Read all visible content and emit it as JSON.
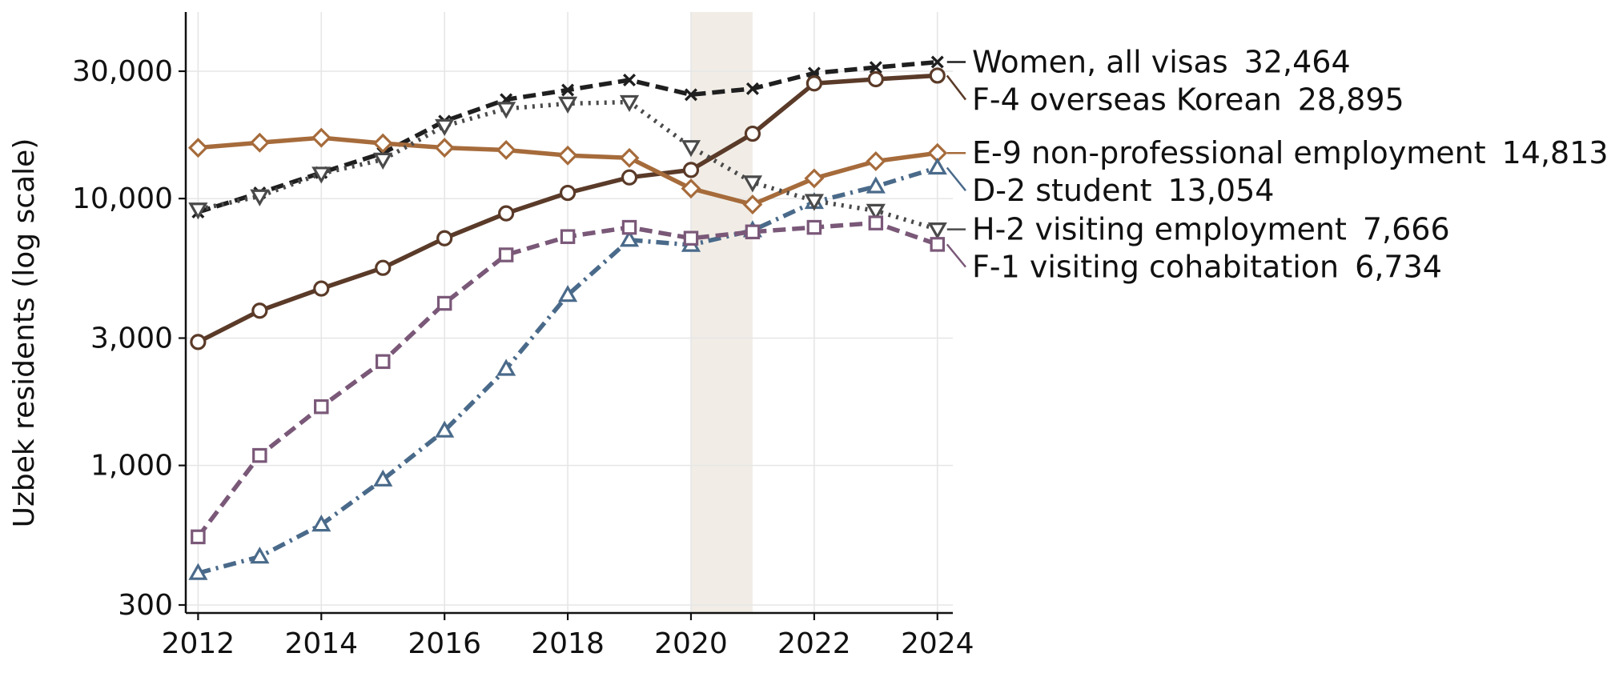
{
  "chart_data": {
    "type": "line",
    "title": "",
    "xlabel": "",
    "ylabel": "Uzbek residents (log scale)",
    "y_scale": "log",
    "ylim": [
      280,
      50000
    ],
    "xlim": [
      2011.8,
      2024.25
    ],
    "grid": true,
    "x": [
      2012,
      2013,
      2014,
      2015,
      2016,
      2017,
      2018,
      2019,
      2020,
      2021,
      2022,
      2023,
      2024
    ],
    "x_ticks": [
      2012,
      2014,
      2016,
      2018,
      2020,
      2022,
      2024
    ],
    "x_tick_labels": [
      "2012",
      "2014",
      "2016",
      "2018",
      "2020",
      "2022",
      "2024"
    ],
    "y_ticks": [
      300,
      1000,
      3000,
      10000,
      30000
    ],
    "y_tick_labels": [
      "300",
      "1,000",
      "3,000",
      "10,000",
      "30,000"
    ],
    "shaded_span": [
      2020,
      2021
    ],
    "shaded_color": "#f1ede6",
    "end_labels": "right",
    "series": [
      {
        "name": "Women, all visas",
        "end_value_label": "32,464",
        "color": "#1f1f1f",
        "line_style": "dashed",
        "marker": "x",
        "values": [
          8900,
          10500,
          12500,
          14800,
          19500,
          23500,
          25500,
          27800,
          24500,
          25800,
          29500,
          31000,
          32464
        ]
      },
      {
        "name": "F-4 overseas Korean",
        "end_value_label": "28,895",
        "color": "#5a3a28",
        "line_style": "solid",
        "marker": "circle",
        "values": [
          2900,
          3800,
          4600,
          5500,
          7100,
          8800,
          10500,
          12000,
          12800,
          17500,
          27000,
          28000,
          28895
        ]
      },
      {
        "name": "E-9 non-professional employment",
        "end_value_label": "14,813",
        "color": "#a66b3b",
        "line_style": "solid",
        "marker": "diamond",
        "values": [
          15500,
          16200,
          16900,
          16100,
          15500,
          15200,
          14500,
          14200,
          10900,
          9500,
          11900,
          13800,
          14813
        ]
      },
      {
        "name": "D-2 student",
        "end_value_label": "13,054",
        "color": "#4a6a8a",
        "line_style": "dashdot",
        "marker": "triangle-up",
        "values": [
          395,
          455,
          600,
          885,
          1350,
          2300,
          4350,
          7000,
          6700,
          7600,
          9700,
          11100,
          13054
        ]
      },
      {
        "name": "H-2 visiting employment",
        "end_value_label": "7,666",
        "color": "#4a4a4a",
        "line_style": "dotted",
        "marker": "triangle-down",
        "values": [
          9100,
          10200,
          12400,
          14000,
          18700,
          21700,
          22700,
          23000,
          15600,
          11500,
          9800,
          9000,
          7666
        ]
      },
      {
        "name": "F-1 visiting cohabitation",
        "end_value_label": "6,734",
        "color": "#7a5878",
        "line_style": "dashed",
        "marker": "square",
        "values": [
          540,
          1090,
          1660,
          2450,
          4050,
          6150,
          7200,
          7800,
          7100,
          7500,
          7800,
          8100,
          6734
        ]
      }
    ]
  }
}
